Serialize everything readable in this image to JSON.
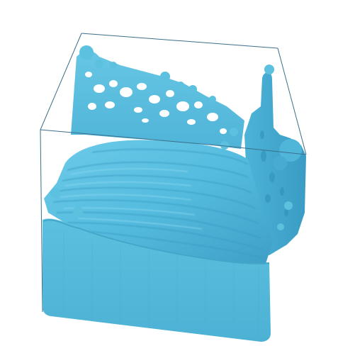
{
  "scene": {
    "subject": "fluid-simulation-volume",
    "colors": {
      "background": "#ffffff",
      "box_outline": "#3b6f8a",
      "fluid_base": "#52b8d9",
      "fluid_light": "#8fd9f0",
      "fluid_mid": "#4aaed0",
      "fluid_dark": "#2f8fb4",
      "fluid_shadow": "#246f8e"
    }
  }
}
